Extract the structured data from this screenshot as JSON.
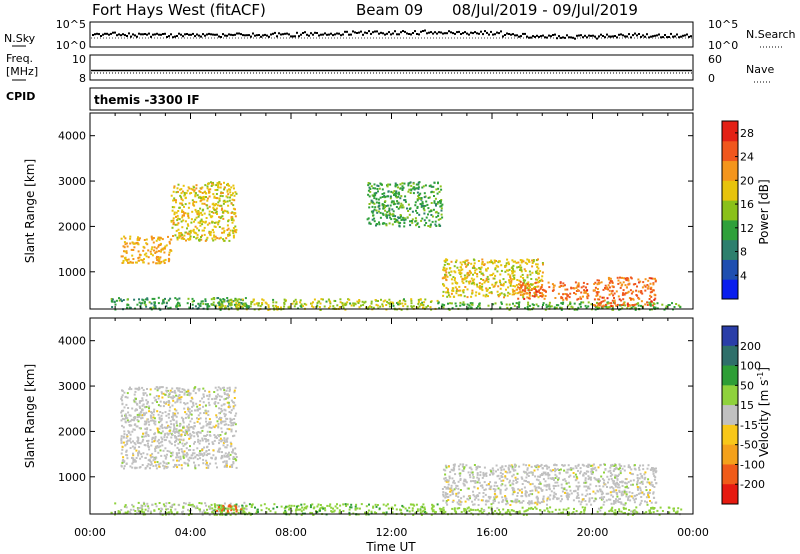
{
  "header": {
    "station": "Fort Hays West (fitACF)",
    "beam": "Beam 09",
    "date_range": "08/Jul/2019 - 09/Jul/2019"
  },
  "strips": {
    "nsky_label": "N.Sky",
    "nsky_ticks": [
      "10^5",
      "10^0"
    ],
    "nsearch_label": "N.Search",
    "nsearch_ticks": [
      "10^5",
      "10^0"
    ],
    "freq_label_1": "Freq.",
    "freq_label_2": "[MHz]",
    "freq_ticks": [
      "10",
      "8"
    ],
    "nave_label": "Nave",
    "nave_ticks": [
      "60",
      "0"
    ],
    "cpid_label": "CPID",
    "cpid_value": "themis -3300 IF"
  },
  "chart_data": [
    {
      "type": "heatmap",
      "panel": "power",
      "ylabel": "Slant Range [km]",
      "yticks": [
        1000,
        2000,
        3000,
        4000
      ],
      "ylim": [
        180,
        4500
      ],
      "xlabel": "Time UT",
      "xticks": [
        "00:00",
        "04:00",
        "08:00",
        "12:00",
        "16:00",
        "20:00",
        "00:00"
      ],
      "xlim_hours": [
        0,
        24
      ],
      "colorbar_label": "Power [dB]",
      "colorbar_ticks": [
        4,
        8,
        12,
        16,
        20,
        24,
        28
      ],
      "colorbar_range": [
        0,
        30
      ],
      "colorbar_colors": [
        "#0a1eee",
        "#1f4fb0",
        "#2d7f6d",
        "#2fa03a",
        "#8ac11a",
        "#e7c30c",
        "#f4951c",
        "#f0571d",
        "#e32116"
      ],
      "regions": [
        {
          "t0": 0.8,
          "t1": 6.3,
          "r0": 180,
          "r1": 450,
          "v": 11
        },
        {
          "t0": 4.8,
          "t1": 13.8,
          "r0": 180,
          "r1": 420,
          "v": 16
        },
        {
          "t0": 13.8,
          "t1": 23.5,
          "r0": 180,
          "r1": 350,
          "v": 13
        },
        {
          "t0": 1.2,
          "t1": 3.2,
          "r0": 1200,
          "r1": 1800,
          "v": 20
        },
        {
          "t0": 3.2,
          "t1": 5.8,
          "r0": 1700,
          "r1": 3000,
          "v": 18
        },
        {
          "t0": 14,
          "t1": 18,
          "r0": 450,
          "r1": 1300,
          "v": 18
        },
        {
          "t0": 17,
          "t1": 19.8,
          "r0": 400,
          "r1": 800,
          "v": 24
        },
        {
          "t0": 20,
          "t1": 22.5,
          "r0": 250,
          "r1": 900,
          "v": 24
        },
        {
          "t0": 11,
          "t1": 14,
          "r0": 2000,
          "r1": 3000,
          "v": 12
        }
      ]
    },
    {
      "type": "heatmap",
      "panel": "velocity",
      "ylabel": "Slant Range [km]",
      "yticks": [
        1000,
        2000,
        3000,
        4000
      ],
      "ylim": [
        180,
        4500
      ],
      "xlabel": "Time UT",
      "xticks": [
        "00:00",
        "04:00",
        "08:00",
        "12:00",
        "16:00",
        "20:00",
        "00:00"
      ],
      "xlim_hours": [
        0,
        24
      ],
      "colorbar_label": "Velocity [m s",
      "colorbar_label_sup": "-1",
      "colorbar_ticks": [
        200,
        100,
        50,
        15,
        -15,
        -50,
        -100,
        -200
      ],
      "colorbar_colors": [
        "#2a3ea8",
        "#2f6f6a",
        "#2e9e36",
        "#8fd23c",
        "#c0c0c0",
        "#f8c719",
        "#f4a11b",
        "#f05b19",
        "#e61a10"
      ],
      "regions": [
        {
          "t0": 0.8,
          "t1": 6.3,
          "r0": 180,
          "r1": 450,
          "v": 15
        },
        {
          "t0": 4.8,
          "t1": 13.8,
          "r0": 180,
          "r1": 420,
          "v": 40
        },
        {
          "t0": 13.8,
          "t1": 23.5,
          "r0": 180,
          "r1": 350,
          "v": 30
        },
        {
          "t0": 5,
          "t1": 6,
          "r0": 250,
          "r1": 400,
          "v": -150
        },
        {
          "t0": 1.2,
          "t1": 5.8,
          "r0": 1200,
          "r1": 3000,
          "v": 0
        },
        {
          "t0": 14,
          "t1": 22.5,
          "r0": 400,
          "r1": 1300,
          "v": 0
        }
      ]
    }
  ]
}
